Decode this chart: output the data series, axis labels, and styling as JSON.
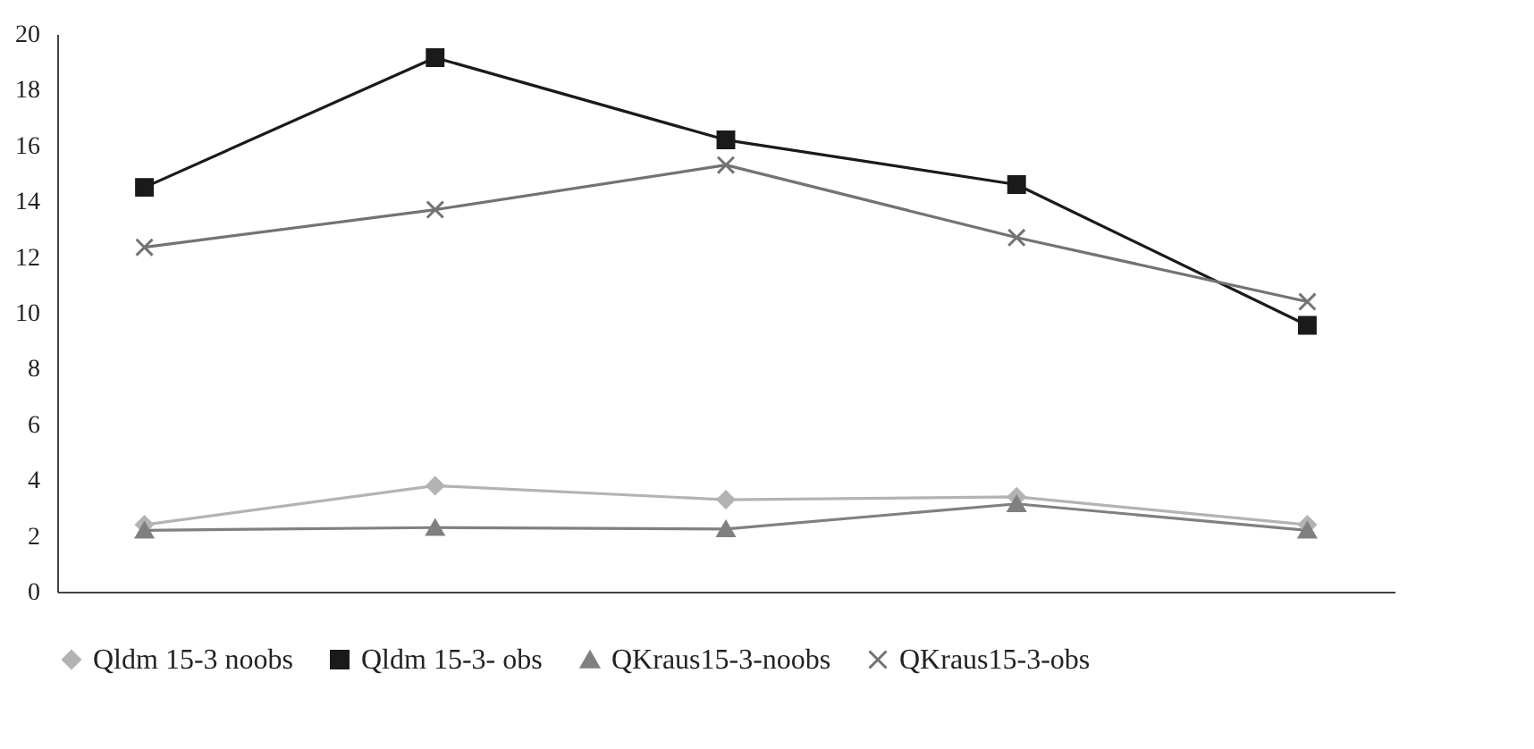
{
  "chart_data": {
    "type": "line",
    "categories": [
      null,
      null,
      null,
      null,
      null
    ],
    "series": [
      {
        "name": "Qldm 15-3 noobs",
        "color": "#b3b3b3",
        "marker": "diamond",
        "values": [
          2.4,
          3.8,
          3.3,
          3.4,
          2.4
        ]
      },
      {
        "name": "Qldm 15-3- obs",
        "color": "#1a1a1a",
        "marker": "square",
        "values": [
          14.5,
          19.15,
          16.2,
          14.6,
          9.55
        ]
      },
      {
        "name": "QKraus15-3-noobs",
        "color": "#808080",
        "marker": "triangle",
        "values": [
          2.2,
          2.3,
          2.25,
          3.15,
          2.2
        ]
      },
      {
        "name": "QKraus15-3-obs",
        "color": "#737373",
        "marker": "cross",
        "values": [
          12.35,
          13.7,
          15.3,
          12.7,
          10.4
        ]
      }
    ],
    "ylim": [
      0,
      20
    ],
    "yticks": [
      0,
      2,
      4,
      6,
      8,
      10,
      12,
      14,
      16,
      18,
      20
    ],
    "grid": false,
    "legend": "bottom",
    "tick_labels": "y",
    "line_style": "solid"
  }
}
